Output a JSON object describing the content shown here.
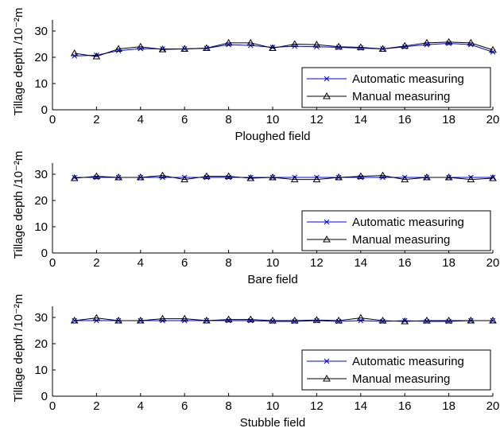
{
  "colors": {
    "automatic": "#0000ff",
    "manual": "#000000",
    "axis": "#000000",
    "background": "#ffffff"
  },
  "chart_data": [
    {
      "type": "line",
      "xlabel": "Ploughed field",
      "ylabel": "Tillage depth /10⁻²m",
      "xlim": [
        0,
        20
      ],
      "ylim": [
        0,
        30
      ],
      "xticks": [
        "0",
        "2",
        "4",
        "6",
        "8",
        "10",
        "12",
        "14",
        "16",
        "18",
        "20"
      ],
      "yticks": [
        "0",
        "10",
        "20",
        "30"
      ],
      "grid": false,
      "legend": "bottom-right",
      "x": [
        1,
        2,
        3,
        4,
        5,
        6,
        7,
        8,
        9,
        10,
        11,
        12,
        13,
        14,
        15,
        16,
        17,
        18,
        19,
        20
      ],
      "series": [
        {
          "name": "Automatic measuring",
          "marker": "x",
          "color": "#0000ff",
          "values": [
            20.5,
            20.8,
            22.5,
            23.3,
            23.2,
            23.2,
            23.4,
            24.8,
            24.5,
            23.8,
            24.2,
            24.0,
            23.8,
            23.5,
            23.2,
            24.0,
            24.8,
            25.3,
            24.8,
            22.0
          ]
        },
        {
          "name": "Manual measuring",
          "marker": "triangle",
          "color": "#000000",
          "values": [
            21.5,
            20.3,
            23.2,
            24.0,
            23.0,
            23.2,
            23.5,
            25.5,
            25.5,
            23.5,
            25.0,
            24.8,
            24.0,
            23.8,
            23.2,
            24.3,
            25.5,
            25.8,
            25.5,
            22.8
          ]
        }
      ]
    },
    {
      "type": "line",
      "xlabel": "Bare field",
      "ylabel": "Tillage depth /10⁻²m",
      "xlim": [
        0,
        20
      ],
      "ylim": [
        0,
        30
      ],
      "xticks": [
        "0",
        "2",
        "4",
        "6",
        "8",
        "10",
        "12",
        "14",
        "16",
        "18",
        "20"
      ],
      "yticks": [
        "0",
        "10",
        "20",
        "30"
      ],
      "grid": false,
      "legend": "bottom-right",
      "x": [
        1,
        2,
        3,
        4,
        5,
        6,
        7,
        8,
        9,
        10,
        11,
        12,
        13,
        14,
        15,
        16,
        17,
        18,
        19,
        20
      ],
      "series": [
        {
          "name": "Automatic measuring",
          "marker": "x",
          "color": "#0000ff",
          "values": [
            28.8,
            28.8,
            28.8,
            28.8,
            28.8,
            28.8,
            28.8,
            28.8,
            28.8,
            28.8,
            28.8,
            28.8,
            28.8,
            28.8,
            28.8,
            28.8,
            28.8,
            28.8,
            28.8,
            28.8
          ]
        },
        {
          "name": "Manual measuring",
          "marker": "triangle",
          "color": "#000000",
          "values": [
            28.5,
            29.2,
            28.8,
            28.8,
            29.5,
            28.0,
            29.2,
            29.2,
            28.5,
            28.8,
            28.0,
            28.0,
            28.8,
            29.2,
            29.5,
            28.0,
            28.8,
            28.8,
            28.0,
            28.5
          ]
        }
      ]
    },
    {
      "type": "line",
      "xlabel": "Stubble field",
      "ylabel": "Tillage depth /10⁻²m",
      "xlim": [
        0,
        20
      ],
      "ylim": [
        0,
        30
      ],
      "xticks": [
        "0",
        "2",
        "4",
        "6",
        "8",
        "10",
        "12",
        "14",
        "16",
        "18",
        "20"
      ],
      "yticks": [
        "0",
        "10",
        "20",
        "30"
      ],
      "grid": false,
      "legend": "bottom-right",
      "x": [
        1,
        2,
        3,
        4,
        5,
        6,
        7,
        8,
        9,
        10,
        11,
        12,
        13,
        14,
        15,
        16,
        17,
        18,
        19,
        20
      ],
      "series": [
        {
          "name": "Automatic measuring",
          "marker": "x",
          "color": "#0000ff",
          "values": [
            28.8,
            28.8,
            28.8,
            28.8,
            28.8,
            28.8,
            28.8,
            28.8,
            28.8,
            28.5,
            28.5,
            28.8,
            28.5,
            28.8,
            28.5,
            28.8,
            28.5,
            28.5,
            28.8,
            28.8
          ]
        },
        {
          "name": "Manual measuring",
          "marker": "triangle",
          "color": "#000000",
          "values": [
            28.8,
            29.8,
            28.8,
            28.8,
            29.5,
            29.5,
            28.8,
            29.2,
            29.2,
            28.8,
            28.8,
            29.0,
            28.8,
            29.8,
            28.8,
            28.5,
            28.8,
            28.8,
            28.8,
            28.8
          ]
        }
      ]
    }
  ]
}
